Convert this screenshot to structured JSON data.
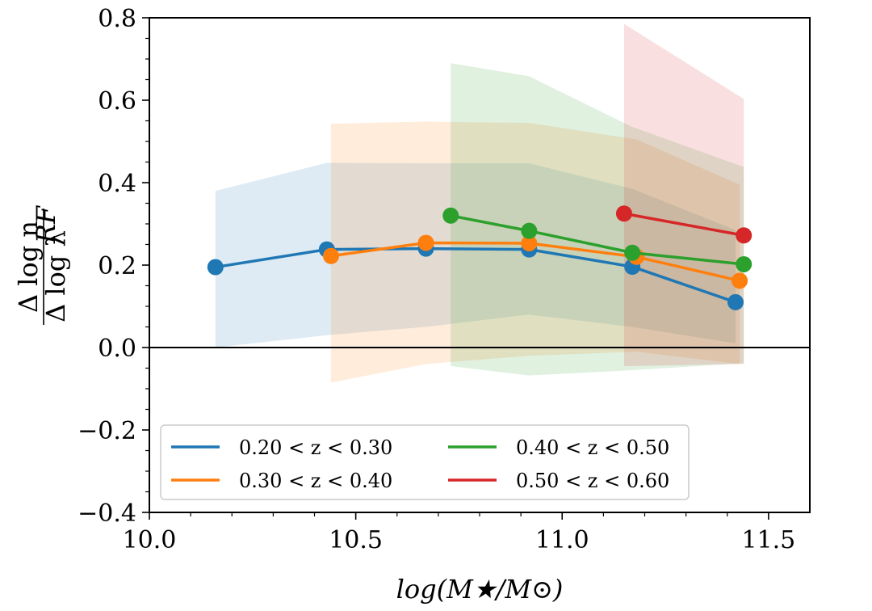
{
  "chart_data": {
    "type": "line",
    "xlabel": "log(M★/M⊙)",
    "ylabel_numerator": "Δ log n",
    "ylabel_denominator": "Δ log λ",
    "ylabel_superscript": "RF",
    "xlim": [
      10.0,
      11.6
    ],
    "ylim": [
      -0.4,
      0.8
    ],
    "xticks": [
      10.0,
      10.5,
      11.0,
      11.5
    ],
    "xtick_labels": [
      "10.0",
      "10.5",
      "11.0",
      "11.5"
    ],
    "yticks": [
      -0.4,
      -0.2,
      0.0,
      0.2,
      0.4,
      0.6,
      0.8
    ],
    "ytick_labels": [
      "−0.4",
      "−0.2",
      "0.0",
      "0.2",
      "0.4",
      "0.6",
      "0.8"
    ],
    "zero_line": 0.0,
    "legend_position": "lower-left",
    "series": [
      {
        "name": "0.20 < z < 0.30",
        "color": "#1f77b4",
        "x": [
          10.16,
          10.43,
          10.67,
          10.92,
          11.17,
          11.42
        ],
        "y": [
          0.195,
          0.238,
          0.24,
          0.238,
          0.196,
          0.11
        ],
        "band_upper": [
          0.38,
          0.448,
          0.447,
          0.447,
          0.385,
          0.285
        ],
        "band_lower": [
          0.0,
          0.03,
          0.05,
          0.08,
          0.05,
          0.01
        ]
      },
      {
        "name": "0.30 < z < 0.40",
        "color": "#ff7f0e",
        "x": [
          10.44,
          10.67,
          10.92,
          11.18,
          11.43
        ],
        "y": [
          0.222,
          0.254,
          0.253,
          0.22,
          0.162
        ],
        "band_upper": [
          0.543,
          0.548,
          0.545,
          0.505,
          0.395
        ],
        "band_lower": [
          -0.085,
          -0.04,
          -0.02,
          -0.01,
          -0.04
        ]
      },
      {
        "name": "0.40 < z < 0.50",
        "color": "#2ca02c",
        "x": [
          10.73,
          10.92,
          11.17,
          11.44
        ],
        "y": [
          0.32,
          0.283,
          0.23,
          0.202
        ],
        "band_upper": [
          0.69,
          0.658,
          0.535,
          0.438
        ],
        "band_lower": [
          -0.045,
          -0.068,
          -0.055,
          -0.038
        ]
      },
      {
        "name": "0.50 < z < 0.60",
        "color": "#d62728",
        "x": [
          11.15,
          11.44
        ],
        "y": [
          0.325,
          0.272
        ],
        "band_upper": [
          0.785,
          0.603
        ],
        "band_lower": [
          -0.045,
          -0.04
        ]
      }
    ]
  }
}
